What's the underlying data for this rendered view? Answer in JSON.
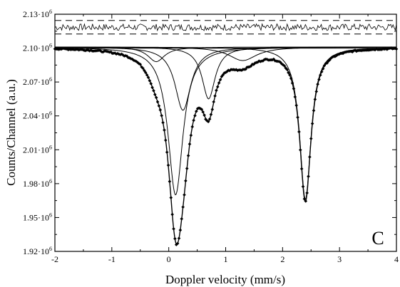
{
  "chart_data": {
    "type": "line",
    "xlabel": "Doppler velocity (mm/s)",
    "ylabel": "Counts/Channel (a.u.)",
    "panel_label": "C",
    "xlim": [
      -2,
      4
    ],
    "ylim": [
      1.92,
      2.13
    ],
    "y_exponent": "6",
    "x_ticks": [
      -2,
      -1,
      0,
      1,
      2,
      3,
      4
    ],
    "x_tick_labels": [
      "-2",
      "-1",
      "0",
      "1",
      "2",
      "3",
      "4"
    ],
    "y_ticks": [
      1.92,
      1.95,
      1.98,
      2.01,
      2.04,
      2.07,
      2.1,
      2.13
    ],
    "y_tick_labels": [
      "1.92",
      "1.95",
      "1.98",
      "2.01",
      "2.04",
      "2.07",
      "2.10",
      "2.13"
    ],
    "baseline": 2.101,
    "fit_components": [
      {
        "center": 0.12,
        "depth": 0.131,
        "hwhm": 0.16
      },
      {
        "center": 2.4,
        "depth": 0.135,
        "hwhm": 0.12
      },
      {
        "center": 0.25,
        "depth": 0.056,
        "hwhm": 0.17
      },
      {
        "center": 0.7,
        "depth": 0.046,
        "hwhm": 0.14
      },
      {
        "center": -0.22,
        "depth": 0.013,
        "hwhm": 0.18
      },
      {
        "center": 1.3,
        "depth": 0.012,
        "hwhm": 0.3
      }
    ],
    "residual_band": {
      "center": 2.1185,
      "upper": 2.1245,
      "lower": 2.1125,
      "noise": 0.003
    }
  }
}
